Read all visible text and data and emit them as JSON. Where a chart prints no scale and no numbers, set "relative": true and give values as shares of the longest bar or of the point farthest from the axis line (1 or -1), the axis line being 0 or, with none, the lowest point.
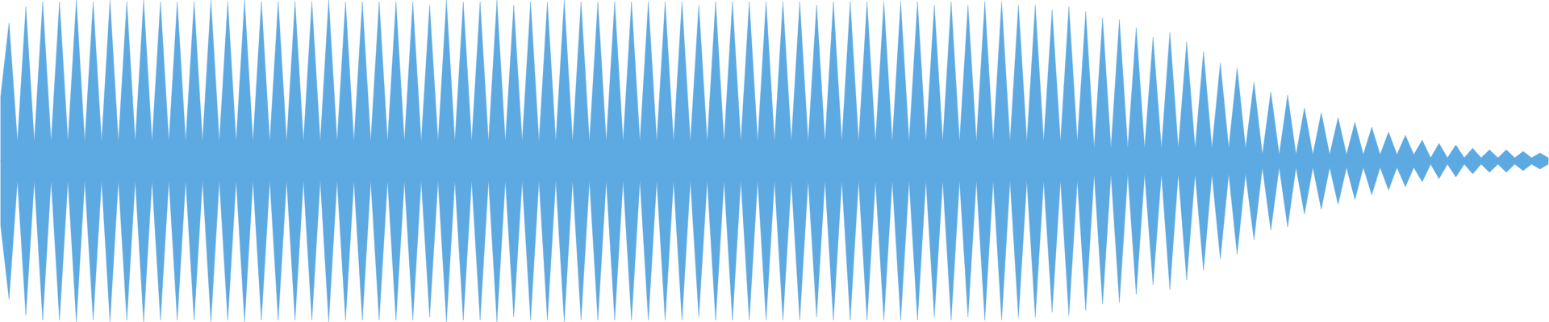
{
  "chart_data": {
    "type": "area",
    "relative": true,
    "ref_lines": [
      {
        "axis": "y",
        "value": 0,
        "color": "#5da9e1"
      }
    ],
    "categories": [
      null,
      null,
      null,
      null,
      null,
      null,
      null,
      null,
      null,
      null,
      null,
      null,
      null,
      null,
      null,
      null,
      null,
      null,
      null,
      null,
      null,
      null,
      null,
      null,
      null,
      null,
      null,
      null,
      null,
      null,
      null,
      null,
      null,
      null,
      null,
      null,
      null,
      null,
      null,
      null,
      null,
      null,
      null,
      null,
      null,
      null,
      null,
      null,
      null,
      null,
      null,
      null,
      null,
      null,
      null,
      null,
      null,
      null,
      null,
      null,
      null,
      null,
      null,
      null,
      null,
      null,
      null,
      null,
      null,
      null,
      null,
      null,
      null,
      null,
      null,
      null,
      null,
      null,
      null,
      null,
      null,
      null,
      null,
      null,
      null,
      null,
      null,
      null,
      null,
      null,
      null,
      null,
      null,
      null,
      null,
      null,
      null,
      null,
      null,
      null,
      null,
      null,
      null,
      null,
      null,
      null,
      null,
      null,
      null,
      null,
      null,
      null,
      null,
      null,
      null,
      null,
      null,
      null,
      null,
      null,
      null,
      null,
      null,
      null,
      null,
      null,
      null,
      null,
      null,
      null,
      null,
      null,
      null,
      null,
      null,
      null,
      null,
      null,
      null,
      null,
      null,
      null,
      null,
      null,
      null,
      null,
      null,
      null,
      null,
      null,
      null,
      null,
      null,
      null,
      null,
      null,
      null,
      null,
      null,
      null,
      null,
      null,
      null,
      null,
      null,
      null,
      null,
      null,
      null,
      null,
      null,
      null,
      null,
      null,
      null,
      null,
      null,
      null,
      null,
      null,
      null,
      null,
      null,
      null,
      null
    ],
    "series": [
      {
        "color": "#5da9e1",
        "values": [
          0.4,
          0.86,
          0.12,
          0.96,
          0.12,
          0.99,
          0.12,
          0.99,
          0.12,
          1,
          0.12,
          0.99,
          0.12,
          1,
          0.12,
          0.99,
          0.12,
          1,
          0.12,
          0.99,
          0.12,
          0.99,
          0.12,
          0.99,
          0.12,
          1,
          0.12,
          0.99,
          0.12,
          1,
          0.12,
          0.99,
          0.12,
          0.99,
          0.12,
          0.99,
          0.12,
          0.99,
          0.12,
          1,
          0.12,
          0.99,
          0.12,
          0.99,
          0.12,
          0.99,
          0.12,
          0.99,
          0.12,
          0.99,
          0.12,
          0.97,
          0.12,
          1,
          0.12,
          0.99,
          0.12,
          0.99,
          0.12,
          1,
          0.12,
          0.97,
          0.12,
          0.99,
          0.12,
          0.99,
          0.12,
          1,
          0.12,
          0.99,
          0.12,
          0.99,
          0.12,
          0.99,
          0.12,
          0.99,
          0.12,
          0.99,
          0.12,
          0.99,
          0.12,
          0.99,
          0.12,
          0.97,
          0.12,
          0.99,
          0.12,
          0.99,
          0.12,
          0.99,
          0.12,
          0.99,
          0.12,
          0.99,
          0.12,
          0.99,
          0.12,
          0.97,
          0.12,
          0.99,
          0.12,
          0.99,
          0.12,
          0.99,
          0.12,
          0.99,
          0.12,
          0.99,
          0.12,
          0.99,
          0.12,
          0.97,
          0.12,
          0.99,
          0.12,
          0.97,
          0.12,
          0.99,
          0.12,
          0.99,
          0.12,
          0.97,
          0.12,
          0.97,
          0.12,
          0.94,
          0.12,
          0.96,
          0.12,
          0.93,
          0.08,
          0.89,
          0.08,
          0.88,
          0.08,
          0.83,
          0.08,
          0.77,
          0.08,
          0.8,
          0.08,
          0.74,
          0.08,
          0.68,
          0.08,
          0.61,
          0.08,
          0.58,
          0.08,
          0.49,
          0.04,
          0.43,
          0.04,
          0.41,
          0.04,
          0.33,
          0.04,
          0.3,
          0.04,
          0.27,
          0.04,
          0.24,
          0.04,
          0.21,
          0.04,
          0.18,
          0.04,
          0.16,
          0.04,
          0.13,
          0.02,
          0.11,
          0.02,
          0.1,
          0.02,
          0.08,
          0.02,
          0.07,
          0.02,
          0.07,
          0.02,
          0.06,
          0.02,
          0.05,
          0.02
        ]
      },
      {
        "color": "#5da9e1",
        "values": [
          -0.4,
          -0.86,
          -0.12,
          -0.96,
          -0.12,
          -0.99,
          -0.12,
          -0.99,
          -0.12,
          -1,
          -0.12,
          -0.99,
          -0.12,
          -1,
          -0.12,
          -0.99,
          -0.12,
          -1,
          -0.12,
          -0.99,
          -0.12,
          -0.99,
          -0.12,
          -0.99,
          -0.12,
          -1,
          -0.12,
          -0.99,
          -0.12,
          -1,
          -0.12,
          -0.99,
          -0.12,
          -0.99,
          -0.12,
          -0.99,
          -0.12,
          -0.99,
          -0.12,
          -1,
          -0.12,
          -0.99,
          -0.12,
          -0.99,
          -0.12,
          -0.99,
          -0.12,
          -0.99,
          -0.12,
          -0.99,
          -0.12,
          -0.97,
          -0.12,
          -1,
          -0.12,
          -0.99,
          -0.12,
          -0.99,
          -0.12,
          -1,
          -0.12,
          -0.97,
          -0.12,
          -0.99,
          -0.12,
          -0.99,
          -0.12,
          -1,
          -0.12,
          -0.99,
          -0.12,
          -0.99,
          -0.12,
          -0.99,
          -0.12,
          -0.99,
          -0.12,
          -0.99,
          -0.12,
          -0.99,
          -0.12,
          -0.99,
          -0.12,
          -0.97,
          -0.12,
          -0.99,
          -0.12,
          -0.99,
          -0.12,
          -0.99,
          -0.12,
          -0.99,
          -0.12,
          -0.99,
          -0.12,
          -0.99,
          -0.12,
          -0.97,
          -0.12,
          -0.99,
          -0.12,
          -0.99,
          -0.12,
          -0.99,
          -0.12,
          -0.99,
          -0.12,
          -0.99,
          -0.12,
          -0.99,
          -0.12,
          -0.97,
          -0.12,
          -0.99,
          -0.12,
          -0.97,
          -0.12,
          -0.99,
          -0.12,
          -0.99,
          -0.12,
          -0.97,
          -0.12,
          -0.97,
          -0.12,
          -0.94,
          -0.12,
          -0.96,
          -0.12,
          -0.93,
          -0.08,
          -0.89,
          -0.08,
          -0.88,
          -0.08,
          -0.83,
          -0.08,
          -0.77,
          -0.08,
          -0.8,
          -0.08,
          -0.74,
          -0.08,
          -0.68,
          -0.08,
          -0.61,
          -0.08,
          -0.58,
          -0.08,
          -0.49,
          -0.04,
          -0.43,
          -0.04,
          -0.41,
          -0.04,
          -0.33,
          -0.04,
          -0.3,
          -0.04,
          -0.27,
          -0.04,
          -0.24,
          -0.04,
          -0.21,
          -0.04,
          -0.18,
          -0.04,
          -0.16,
          -0.04,
          -0.13,
          -0.02,
          -0.11,
          -0.02,
          -0.1,
          -0.02,
          -0.08,
          -0.02,
          -0.07,
          -0.02,
          -0.07,
          -0.02,
          -0.06,
          -0.02,
          -0.05,
          -0.02
        ]
      }
    ]
  }
}
